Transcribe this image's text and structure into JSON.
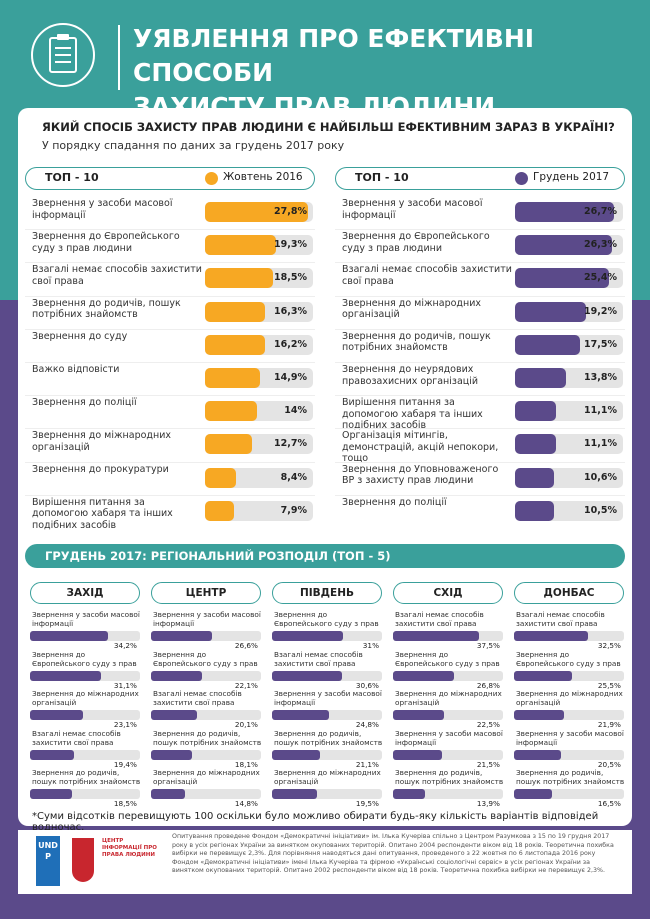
{
  "header": {
    "title_lines": [
      "УЯВЛЕННЯ ПРО ЕФЕКТИВНІ СПОСОБИ",
      "ЗАХИСТУ ПРАВ ЛЮДИНИ"
    ]
  },
  "question": "ЯКИЙ СПОСІБ ЗАХИСТУ ПРАВ ЛЮДИНИ Є НАЙБІЛЬШ ЕФЕКТИВНИМ ЗАРАЗ В УКРАЇНІ?",
  "subtitle": "У порядку спадання по даних за грудень 2017 року",
  "panels": [
    {
      "heading": "ТОП - 10",
      "legend": "Жовтень 2016",
      "color": "#f7a823",
      "items": [
        {
          "label": "Звернення у засоби масової інформації",
          "value": 27.8,
          "value_label": "27,8%"
        },
        {
          "label": "Звернення до Європейського суду з прав людини",
          "value": 19.3,
          "value_label": "19,3%"
        },
        {
          "label": "Взагалі немає способів захистити свої права",
          "value": 18.5,
          "value_label": "18,5%"
        },
        {
          "label": "Звернення до родичів, пошук потрібних знайомств",
          "value": 16.3,
          "value_label": "16,3%"
        },
        {
          "label": "Звернення до суду",
          "value": 16.2,
          "value_label": "16,2%"
        },
        {
          "label": "Важко відповісти",
          "value": 14.9,
          "value_label": "14,9%"
        },
        {
          "label": "Звернення до поліції",
          "value": 14,
          "value_label": "14%"
        },
        {
          "label": "Звернення до міжнародних організацій",
          "value": 12.7,
          "value_label": "12,7%"
        },
        {
          "label": "Звернення до прокуратури",
          "value": 8.4,
          "value_label": "8,4%"
        },
        {
          "label": "Вирішення питання за допомогою хабаря та інших подібних засобів",
          "value": 7.9,
          "value_label": "7,9%"
        }
      ]
    },
    {
      "heading": "ТОП - 10",
      "legend": "Грудень 2017",
      "color": "#5b4a8a",
      "items": [
        {
          "label": "Звернення у засоби масової інформації",
          "value": 26.7,
          "value_label": "26,7%"
        },
        {
          "label": "Звернення до Європейського суду з прав людини",
          "value": 26.3,
          "value_label": "26,3%"
        },
        {
          "label": "Взагалі немає способів захистити свої права",
          "value": 25.4,
          "value_label": "25,4%"
        },
        {
          "label": "Звернення до міжнародних організацій",
          "value": 19.2,
          "value_label": "19,2%"
        },
        {
          "label": "Звернення до родичів, пошук потрібних знайомств",
          "value": 17.5,
          "value_label": "17,5%"
        },
        {
          "label": "Звернення до неурядових правозахисних організацій",
          "value": 13.8,
          "value_label": "13,8%"
        },
        {
          "label": "Вирішення питання за допомогою хабаря та інших подібних засобів",
          "value": 11.1,
          "value_label": "11,1%"
        },
        {
          "label": "Організація мітингів, демонстрацій, акцій непокори, тощо",
          "value": 11.1,
          "value_label": "11,1%"
        },
        {
          "label": "Звернення до Уповноваженого ВР з захисту прав людини",
          "value": 10.6,
          "value_label": "10,6%"
        },
        {
          "label": "Звернення до поліції",
          "value": 10.5,
          "value_label": "10,5%"
        }
      ]
    }
  ],
  "regional": {
    "title": "ГРУДЕНЬ 2017: РЕГІОНАЛЬНИЙ РОЗПОДІЛ (ТОП - 5)",
    "color": "#5b4a8a",
    "regions": [
      {
        "name": "ЗАХІД",
        "items": [
          {
            "label": "Звернення у засоби масової інформації",
            "value": 34.2,
            "value_label": "34,2%"
          },
          {
            "label": "Звернення до Європейського суду з прав людини",
            "value": 31.1,
            "value_label": "31,1%"
          },
          {
            "label": "Звернення до міжнародних організацій",
            "value": 23.1,
            "value_label": "23,1%"
          },
          {
            "label": "Взагалі немає способів захистити свої права",
            "value": 19.4,
            "value_label": "19,4%"
          },
          {
            "label": "Звернення до родичів, пошук потрібних знайомств",
            "value": 18.5,
            "value_label": "18,5%"
          }
        ]
      },
      {
        "name": "ЦЕНТР",
        "items": [
          {
            "label": "Звернення у засоби масової інформації",
            "value": 26.6,
            "value_label": "26,6%"
          },
          {
            "label": "Звернення до Європейського суду з прав людини",
            "value": 22.1,
            "value_label": "22,1%"
          },
          {
            "label": "Взагалі немає способів захистити свої права",
            "value": 20.1,
            "value_label": "20,1%"
          },
          {
            "label": "Звернення до родичів, пошук потрібних знайомств",
            "value": 18.1,
            "value_label": "18,1%"
          },
          {
            "label": "Звернення до міжнародних організацій",
            "value": 14.8,
            "value_label": "14,8%"
          }
        ]
      },
      {
        "name": "ПІВДЕНЬ",
        "items": [
          {
            "label": "Звернення до Європейського суду з прав людини",
            "value": 31,
            "value_label": "31%"
          },
          {
            "label": "Взагалі немає способів захистити свої права",
            "value": 30.6,
            "value_label": "30,6%"
          },
          {
            "label": "Звернення у засоби масової інформації",
            "value": 24.8,
            "value_label": "24,8%"
          },
          {
            "label": "Звернення до родичів, пошук потрібних знайомств",
            "value": 21.1,
            "value_label": "21,1%"
          },
          {
            "label": "Звернення до міжнародних організацій",
            "value": 19.5,
            "value_label": "19,5%"
          }
        ]
      },
      {
        "name": "СХІД",
        "items": [
          {
            "label": "Взагалі немає способів захистити свої права",
            "value": 37.5,
            "value_label": "37,5%"
          },
          {
            "label": "Звернення до Європейського суду з прав людини",
            "value": 26.8,
            "value_label": "26,8%"
          },
          {
            "label": "Звернення до міжнародних організацій",
            "value": 22.5,
            "value_label": "22,5%"
          },
          {
            "label": "Звернення у засоби масової інформації",
            "value": 21.5,
            "value_label": "21,5%"
          },
          {
            "label": "Звернення до родичів, пошук потрібних знайомств",
            "value": 13.9,
            "value_label": "13,9%"
          }
        ]
      },
      {
        "name": "ДОНБАС",
        "items": [
          {
            "label": "Взагалі немає способів захистити свої права",
            "value": 32.5,
            "value_label": "32,5%"
          },
          {
            "label": "Звернення до Європейського суду з прав людини",
            "value": 25.5,
            "value_label": "25,5%"
          },
          {
            "label": "Звернення до міжнародних організацій",
            "value": 21.9,
            "value_label": "21,9%"
          },
          {
            "label": "Звернення у засоби масової інформації",
            "value": 20.5,
            "value_label": "20,5%"
          },
          {
            "label": "Звернення до родичів, пошук потрібних знайомств",
            "value": 16.5,
            "value_label": "16,5%"
          }
        ]
      }
    ]
  },
  "footnote": "*Суми відсотків перевищують 100 оскільки було можливо обирати будь-яку кількість варіантів відповідей водночас.",
  "logos": {
    "undp": "UNDP",
    "center": "ЦЕНТР ІНФОРМАЦІЇ ПРО ПРАВА ЛЮДИНИ"
  },
  "methodology": "Опитування проведене Фондом «Демократичні ініціативи» ім. Ілька Кучеріва спільно з Центром Разумкова з 15 по 19 грудня 2017 року в усіх регіонах України за винятком окупованих територій. Опитано 2004 респонденти віком від 18 років. Теоретична похибка вибірки не перевищує 2,3%. Для порівняння наводяться дані опитування, проведеного з 22 жовтня по 6 листопада 2016 року Фондом «Демократичні ініціативи» імені Ілька Кучеріва та фірмою «Українські соціологічні сервіс» в усіх регіонах України за винятком окупованих територій. Опитано 2002 респонденти віком від 18 років. Теоретична похибка вибірки не перевищує 2,3%."
}
